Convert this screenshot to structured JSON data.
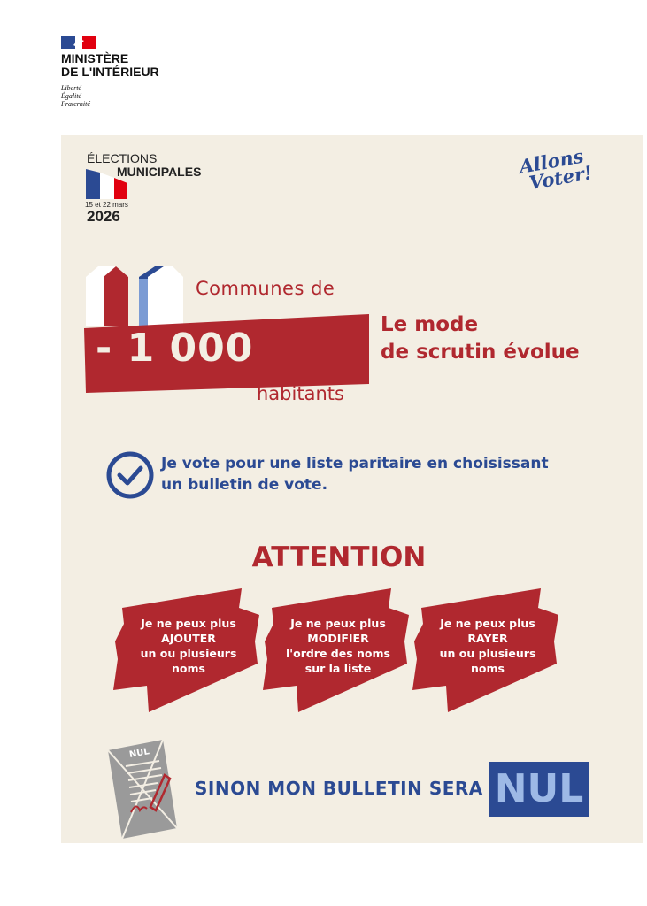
{
  "header": {
    "ministry_line1": "MINISTÈRE",
    "ministry_line2": "DE L'INTÉRIEUR",
    "motto": [
      "Liberté",
      "Égalité",
      "Fraternité"
    ]
  },
  "election": {
    "line1": "ÉLECTIONS",
    "line2": "MUNICIPALES",
    "dates": "15 et 22 mars",
    "year": "2026"
  },
  "slogan": {
    "line1": "Allons",
    "line2": "Voter!"
  },
  "communes": {
    "prefix": "Communes de",
    "number": "- 1 000",
    "suffix": "habitants"
  },
  "mode": {
    "line1": "Le mode",
    "line2": "de scrutin évolue"
  },
  "vote": {
    "line1": "Je vote pour une liste paritaire en choisissant",
    "line2": "un bulletin de vote.",
    "icon": "check-circle-icon"
  },
  "attention": "ATTENTION",
  "ribbons": [
    {
      "l1": "Je ne peux plus",
      "l2": "AJOUTER",
      "l3": "un ou plusieurs",
      "l4": "noms"
    },
    {
      "l1": "Je ne peux plus",
      "l2": "MODIFIER",
      "l3": "l'ordre des noms",
      "l4": "sur la liste"
    },
    {
      "l1": "Je ne peux plus",
      "l2": "RAYER",
      "l3": "un ou plusieurs",
      "l4": "noms"
    }
  ],
  "bottom": {
    "ballot_label": "NUL",
    "text": "SINON MON BULLETIN SERA",
    "nul": "NUL"
  },
  "colors": {
    "red": "#b0282f",
    "blue": "#2b4a93",
    "beige": "#f3eee3",
    "light_blue": "#9db9e6"
  }
}
